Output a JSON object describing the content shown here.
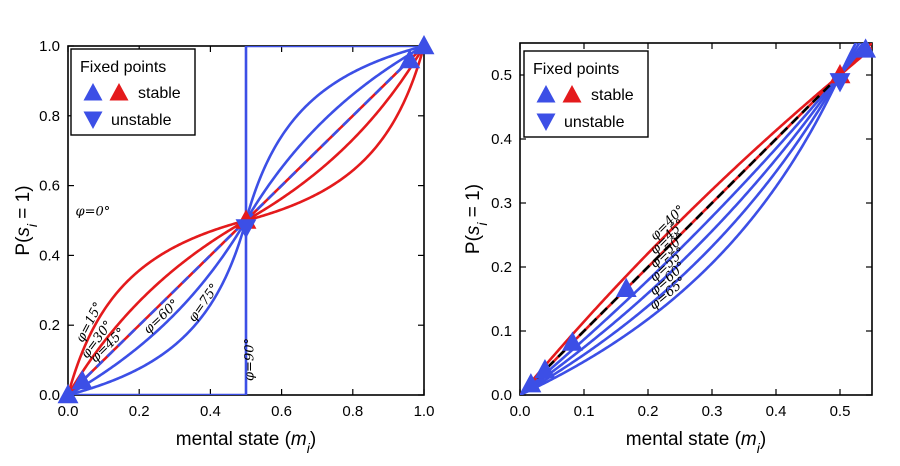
{
  "colors": {
    "red": "#e41a1c",
    "blue": "#3c4fe6",
    "black": "#000000"
  },
  "chart_data": [
    {
      "type": "line",
      "xlabel": "mental state (m_i)",
      "xlabel_parts": {
        "prefix": "mental state (",
        "var": "m",
        "sub": "i",
        "suffix": ")"
      },
      "ylabel": "P(s_i = 1)",
      "ylabel_parts": {
        "prefix": "P(",
        "var": "s",
        "sub": "i",
        "suffix": " = 1)"
      },
      "xlim": [
        0,
        1
      ],
      "ylim": [
        0,
        1
      ],
      "xticks": [
        0,
        0.2,
        0.4,
        0.6,
        0.8,
        1.0
      ],
      "xtick_labels": [
        "0.0",
        "0.2",
        "0.4",
        "0.6",
        "0.8",
        "1.0"
      ],
      "yticks": [
        0,
        0.2,
        0.4,
        0.6,
        0.8,
        1.0
      ],
      "ytick_labels": [
        "0.0",
        "0.2",
        "0.4",
        "0.6",
        "0.8",
        "1.0"
      ],
      "legend": {
        "title": "Fixed points",
        "stable": "stable",
        "unstable": "unstable",
        "placement": "top-left"
      },
      "series": [
        {
          "name": "φ=0°",
          "angle_deg": 0,
          "color": "red",
          "label": "φ=0°",
          "label_at": 0.07
        },
        {
          "name": "φ=15°",
          "angle_deg": 15,
          "color": "red",
          "label": "φ=15°",
          "label_at": 0.07
        },
        {
          "name": "φ=30°",
          "angle_deg": 30,
          "color": "red",
          "label": "φ=30°",
          "label_at": 0.09
        },
        {
          "name": "φ=45°",
          "angle_deg": 45,
          "color": "red",
          "label": "φ=45°",
          "label_at": 0.12
        },
        {
          "name": "φ=60°",
          "angle_deg": 60,
          "color": "blue",
          "label": "φ=60°",
          "label_at": 0.27
        },
        {
          "name": "φ=75°",
          "angle_deg": 75,
          "color": "blue",
          "label": "φ=75°",
          "label_at": 0.39
        },
        {
          "name": "φ=90°",
          "angle_deg": 90,
          "color": "blue",
          "label": "φ=90°",
          "label_at": 0.51
        }
      ],
      "reference_line": {
        "style": "dashed",
        "color": "blue",
        "x": [
          0.05,
          0.95
        ],
        "y": [
          0.05,
          0.95
        ]
      },
      "fixed_points": [
        {
          "x": 0.0,
          "y": 0.0,
          "kind": "stable",
          "color": "blue"
        },
        {
          "x": 0.04,
          "y": 0.04,
          "kind": "stable",
          "color": "blue"
        },
        {
          "x": 0.5,
          "y": 0.5,
          "kind": "stable",
          "color": "red"
        },
        {
          "x": 0.5,
          "y": 0.48,
          "kind": "unstable",
          "color": "blue"
        },
        {
          "x": 0.96,
          "y": 0.96,
          "kind": "stable",
          "color": "blue"
        },
        {
          "x": 1.0,
          "y": 1.0,
          "kind": "stable",
          "color": "blue"
        }
      ]
    },
    {
      "type": "line",
      "xlabel": "mental state (m_i)",
      "xlabel_parts": {
        "prefix": "mental state (",
        "var": "m",
        "sub": "i",
        "suffix": ")"
      },
      "ylabel": "P(s_i = 1)",
      "ylabel_parts": {
        "prefix": "P(",
        "var": "s",
        "sub": "i",
        "suffix": " = 1)"
      },
      "xlim": [
        0,
        0.55
      ],
      "ylim": [
        0,
        0.55
      ],
      "xticks": [
        0,
        0.1,
        0.2,
        0.3,
        0.4,
        0.5
      ],
      "xtick_labels": [
        "0.0",
        "0.1",
        "0.2",
        "0.3",
        "0.4",
        "0.5"
      ],
      "yticks": [
        0,
        0.1,
        0.2,
        0.3,
        0.4,
        0.5
      ],
      "ytick_labels": [
        "0.0",
        "0.1",
        "0.2",
        "0.3",
        "0.4",
        "0.5"
      ],
      "legend": {
        "title": "Fixed points",
        "stable": "stable",
        "unstable": "unstable",
        "placement": "top-left"
      },
      "series": [
        {
          "name": "φ=40°",
          "angle_deg": 40,
          "color": "red",
          "label": "φ=40°",
          "label_at": 0.235
        },
        {
          "name": "φ=45°",
          "angle_deg": 45,
          "color": "red",
          "label": "φ=45°",
          "label_at": 0.235
        },
        {
          "name": "φ=50°",
          "angle_deg": 50,
          "color": "blue",
          "label": "φ=50°",
          "label_at": 0.235
        },
        {
          "name": "φ=55°",
          "angle_deg": 55,
          "color": "blue",
          "label": "φ=55°",
          "label_at": 0.235
        },
        {
          "name": "φ=60°",
          "angle_deg": 60,
          "color": "blue",
          "label": "φ=60°",
          "label_at": 0.235
        },
        {
          "name": "φ=65°",
          "angle_deg": 65,
          "color": "blue",
          "label": "φ=65°",
          "label_at": 0.235
        }
      ],
      "reference_line": {
        "style": "dashed",
        "color": "black",
        "x": [
          0.01,
          0.5
        ],
        "y": [
          0.01,
          0.5
        ]
      },
      "fixed_points": [
        {
          "x": 0.017,
          "y": 0.017,
          "kind": "stable",
          "color": "blue"
        },
        {
          "x": 0.039,
          "y": 0.039,
          "kind": "stable",
          "color": "blue"
        },
        {
          "x": 0.082,
          "y": 0.082,
          "kind": "stable",
          "color": "blue"
        },
        {
          "x": 0.166,
          "y": 0.166,
          "kind": "stable",
          "color": "blue"
        },
        {
          "x": 0.5,
          "y": 0.5,
          "kind": "stable",
          "color": "red"
        },
        {
          "x": 0.5,
          "y": 0.49,
          "kind": "unstable",
          "color": "blue"
        },
        {
          "x": 0.54,
          "y": 0.54,
          "kind": "stable",
          "color": "blue"
        }
      ]
    }
  ]
}
